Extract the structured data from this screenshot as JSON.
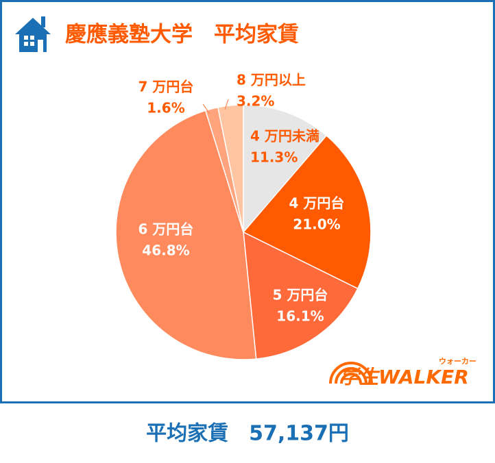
{
  "chart_data": {
    "type": "pie",
    "title": "慶應義塾大学　平均家賃",
    "categories": [
      "4 万円未満",
      "4 万円台",
      "5 万円台",
      "6 万円台",
      "7 万円台",
      "8 万円以上"
    ],
    "values": [
      11.3,
      21.0,
      16.1,
      46.8,
      1.6,
      3.2
    ],
    "value_labels": [
      "11.3%",
      "21.0%",
      "16.1%",
      "46.8%",
      "1.6%",
      "3.2%"
    ],
    "colors": [
      "#e6e6e6",
      "#ff5a00",
      "#ff6a3b",
      "#ff8a5e",
      "#ffa47c",
      "#ffc4a2"
    ]
  },
  "footer": "平均家賃　57,137円",
  "logo": {
    "text": "学生WALKER",
    "ruby": "ウォーカー"
  }
}
